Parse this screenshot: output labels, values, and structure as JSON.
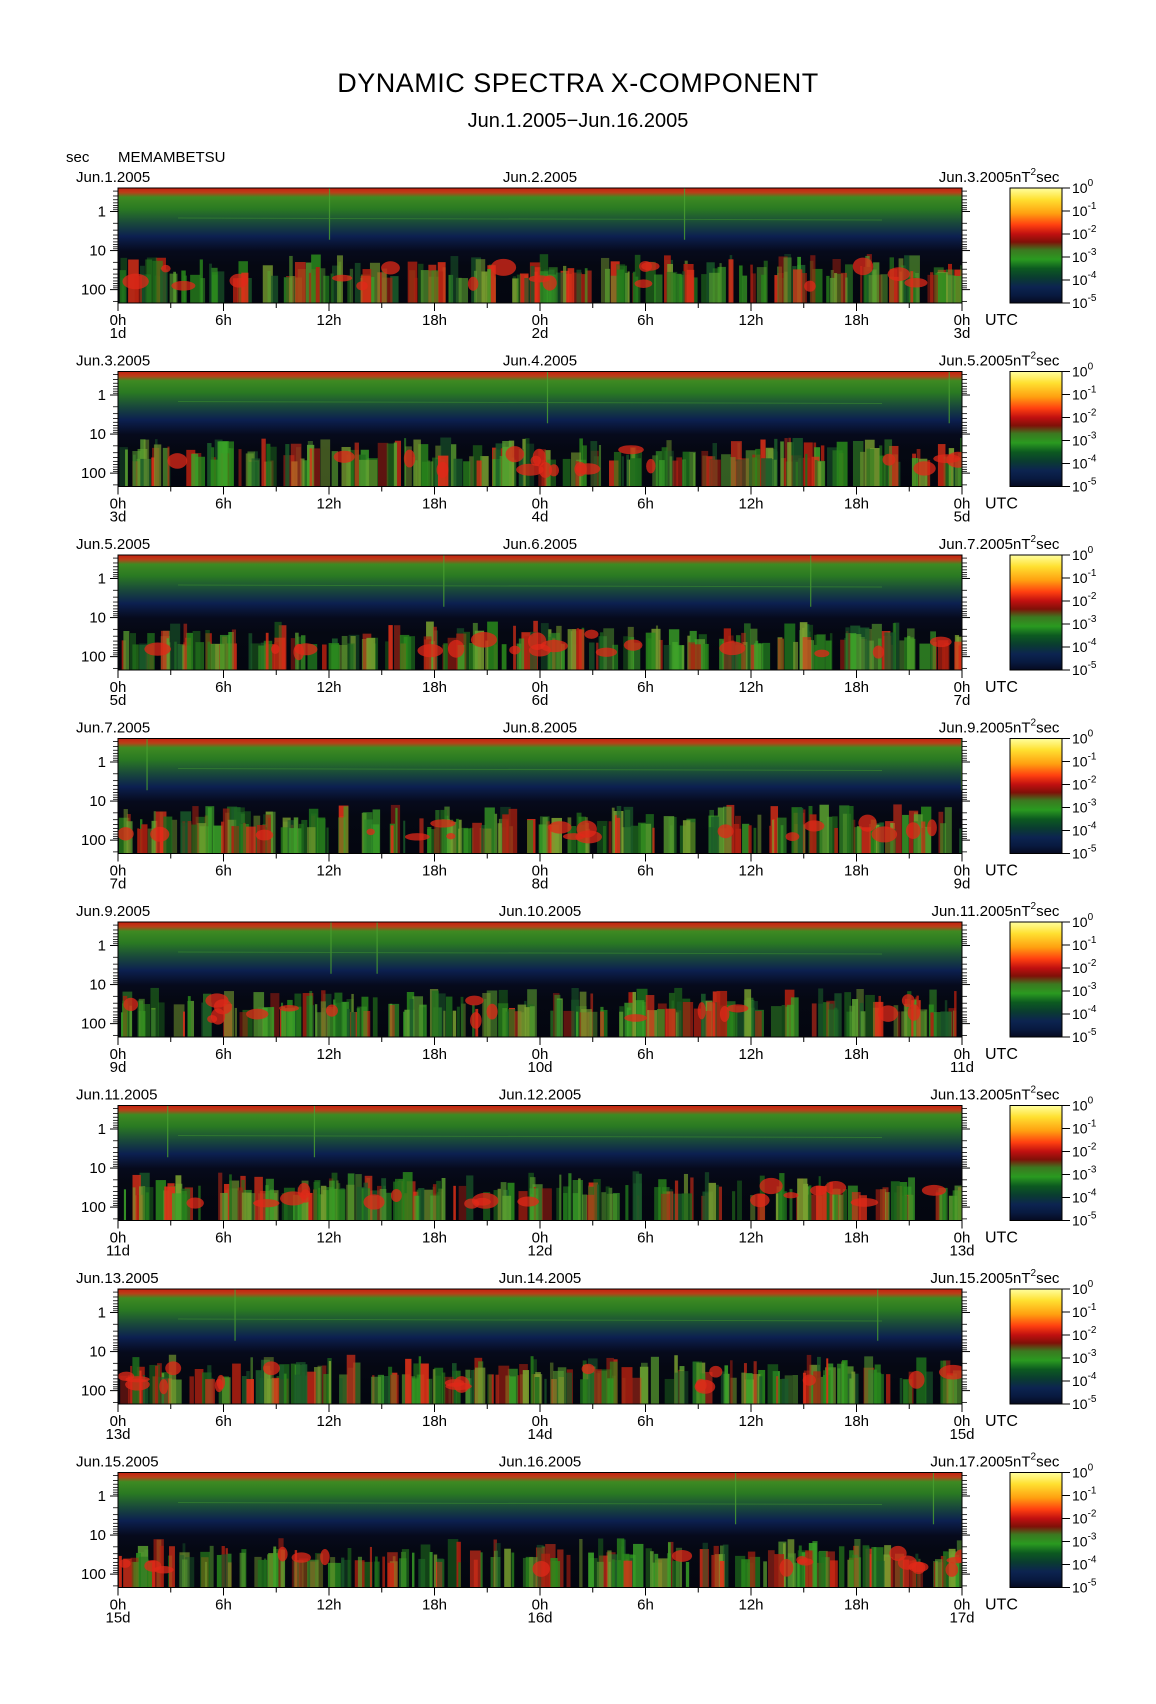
{
  "title": "DYNAMIC SPECTRA X-COMPONENT",
  "subtitle": "Jun.1.2005−Jun.16.2005",
  "unit_label": "sec",
  "station": "MEMAMBETSU",
  "utc_label": "UTC",
  "colorbar_unit": "nT²sec",
  "chart_data": {
    "type": "heatmap",
    "title": "DYNAMIC SPECTRA X-COMPONENT",
    "subtitle": "Jun.1.2005−Jun.16.2005",
    "ylabel": "sec",
    "y_scale": "log",
    "y_ticks": [
      "1",
      "10",
      "100"
    ],
    "x_ticks": [
      "0h",
      "6h",
      "12h",
      "18h",
      "0h",
      "6h",
      "12h",
      "18h",
      "0h"
    ],
    "colorbar": {
      "unit": "nT²sec",
      "scale": "log",
      "ticks": [
        "10^0",
        "10^-1",
        "10^-2",
        "10^-3",
        "10^-4",
        "10^-5"
      ],
      "colors": [
        "#ffffa0",
        "#ffe030",
        "#ffa010",
        "#ff4010",
        "#e01010",
        "#b01008",
        "#3c7820",
        "#2a9a20",
        "#0c5a20",
        "#0a3c30",
        "#0c2450",
        "#081a40",
        "#060a20"
      ]
    },
    "panels": [
      {
        "start": "Jun.1.2005",
        "mid": "Jun.2.2005",
        "end": "Jun.3.2005",
        "day_labels": [
          "1d",
          "2d",
          "3d"
        ]
      },
      {
        "start": "Jun.3.2005",
        "mid": "Jun.4.2005",
        "end": "Jun.5.2005",
        "day_labels": [
          "3d",
          "4d",
          "5d"
        ]
      },
      {
        "start": "Jun.5.2005",
        "mid": "Jun.6.2005",
        "end": "Jun.7.2005",
        "day_labels": [
          "5d",
          "6d",
          "7d"
        ]
      },
      {
        "start": "Jun.7.2005",
        "mid": "Jun.8.2005",
        "end": "Jun.9.2005",
        "day_labels": [
          "7d",
          "8d",
          "9d"
        ]
      },
      {
        "start": "Jun.9.2005",
        "mid": "Jun.10.2005",
        "end": "Jun.11.2005",
        "day_labels": [
          "9d",
          "10d",
          "11d"
        ]
      },
      {
        "start": "Jun.11.2005",
        "mid": "Jun.12.2005",
        "end": "Jun.13.2005",
        "day_labels": [
          "11d",
          "12d",
          "13d"
        ]
      },
      {
        "start": "Jun.13.2005",
        "mid": "Jun.14.2005",
        "end": "Jun.15.2005",
        "day_labels": [
          "13d",
          "14d",
          "15d"
        ]
      },
      {
        "start": "Jun.15.2005",
        "mid": "Jun.16.2005",
        "end": "Jun.17.2005",
        "day_labels": [
          "15d",
          "16d",
          "17d"
        ]
      }
    ]
  }
}
